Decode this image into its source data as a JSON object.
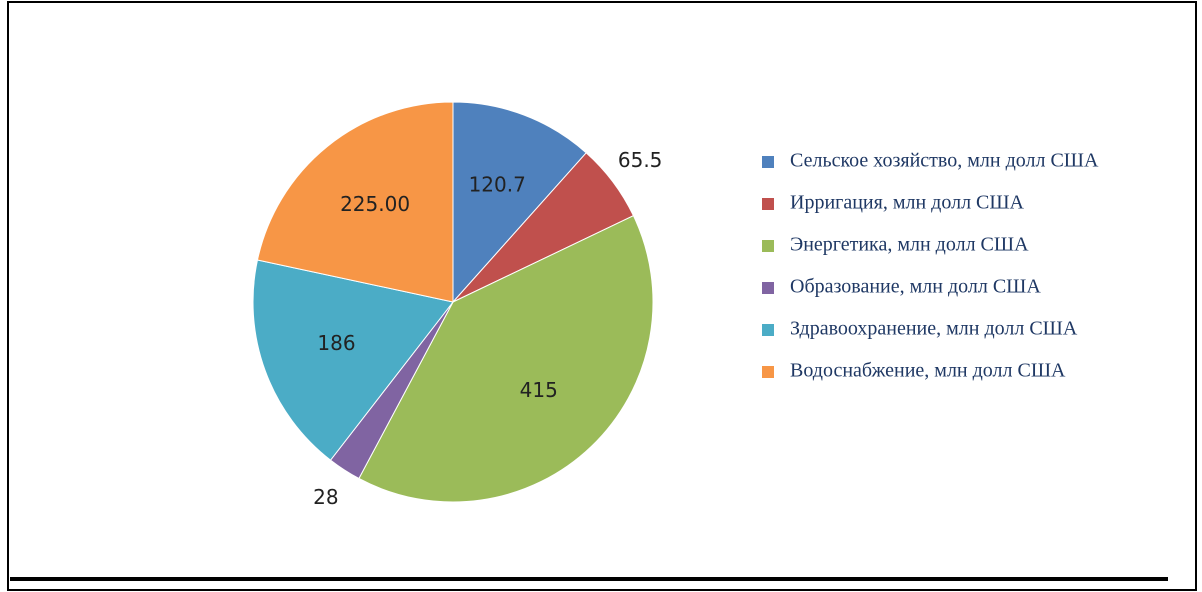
{
  "chart_data": {
    "type": "pie",
    "categories": [
      "Сельское хозяйство, млн долл США",
      "Ирригация, млн долл США",
      "Энергетика, млн долл США",
      "Образование, млн долл США",
      "Здравоохранение, млн долл США",
      "Водоснабжение, млн долл США"
    ],
    "values": [
      120.7,
      65.5,
      415,
      28,
      186,
      225
    ],
    "value_labels": [
      "120.7",
      "65.5",
      "415",
      "28",
      "186",
      "225.00"
    ],
    "colors": [
      "#4f81bd",
      "#c0504d",
      "#9bbb59",
      "#8064a2",
      "#4bacc6",
      "#f79646"
    ],
    "legend": "right"
  }
}
